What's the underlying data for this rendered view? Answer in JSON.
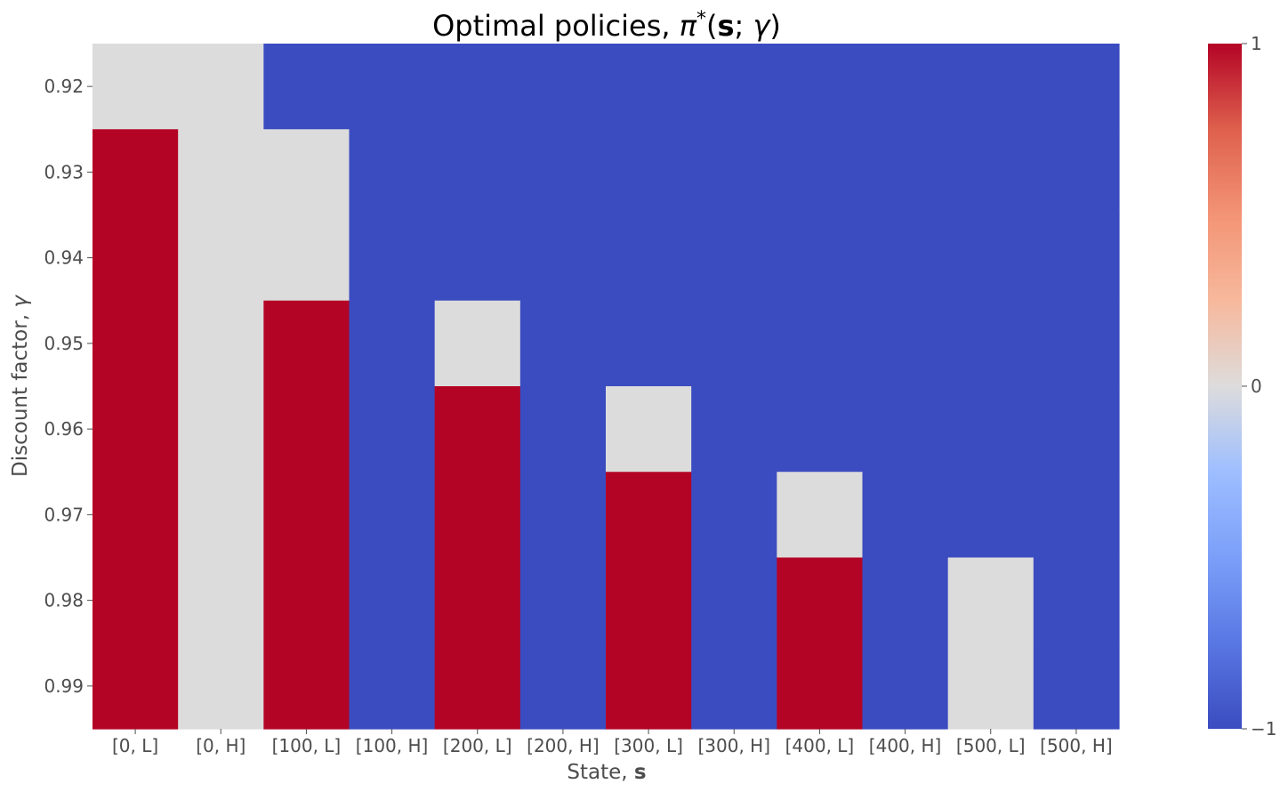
{
  "chart_data": {
    "type": "heatmap",
    "title": {
      "prefix": "Optimal policies, ",
      "symbol": "π",
      "star": "*",
      "open": "(",
      "bold_var": "s",
      "sep": "; ",
      "gamma": "γ",
      "close": ")"
    },
    "xlabel": {
      "text": "State, ",
      "bold_var": "s"
    },
    "ylabel": {
      "text": "Discount factor, ",
      "gamma": "γ"
    },
    "x_categories": [
      "[0, L]",
      "[0, H]",
      "[100, L]",
      "[100, H]",
      "[200, L]",
      "[200, H]",
      "[300, L]",
      "[300, H]",
      "[400, L]",
      "[400, H]",
      "[500, L]",
      "[500, H]"
    ],
    "y_categories": [
      "0.92",
      "0.93",
      "0.94",
      "0.95",
      "0.96",
      "0.97",
      "0.98",
      "0.99"
    ],
    "values": [
      [
        0,
        0,
        -1,
        -1,
        -1,
        -1,
        -1,
        -1,
        -1,
        -1,
        -1,
        -1
      ],
      [
        1,
        0,
        0,
        -1,
        -1,
        -1,
        -1,
        -1,
        -1,
        -1,
        -1,
        -1
      ],
      [
        1,
        0,
        0,
        -1,
        -1,
        -1,
        -1,
        -1,
        -1,
        -1,
        -1,
        -1
      ],
      [
        1,
        0,
        1,
        -1,
        0,
        -1,
        -1,
        -1,
        -1,
        -1,
        -1,
        -1
      ],
      [
        1,
        0,
        1,
        -1,
        1,
        -1,
        0,
        -1,
        -1,
        -1,
        -1,
        -1
      ],
      [
        1,
        0,
        1,
        -1,
        1,
        -1,
        1,
        -1,
        0,
        -1,
        -1,
        -1
      ],
      [
        1,
        0,
        1,
        -1,
        1,
        -1,
        1,
        -1,
        1,
        -1,
        0,
        -1
      ],
      [
        1,
        0,
        1,
        -1,
        1,
        -1,
        1,
        -1,
        1,
        -1,
        0,
        -1
      ]
    ],
    "colorbar": {
      "ticks": [
        "1",
        "0",
        "−1"
      ],
      "tick_values": [
        1,
        0,
        -1
      ],
      "range": [
        -1,
        1
      ]
    },
    "colormap": "coolwarm",
    "colors": {
      "high": "#b40426",
      "mid": "#dddcdc",
      "low": "#3b4cc0"
    }
  }
}
